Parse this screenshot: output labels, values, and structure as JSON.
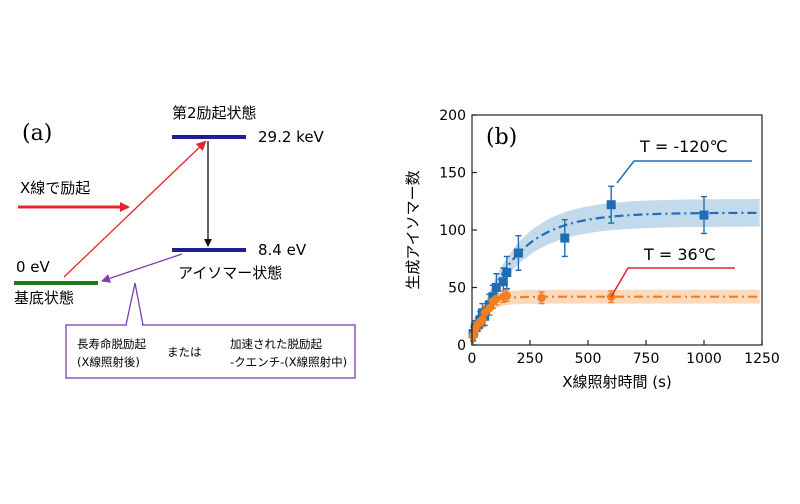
{
  "panel_a": {
    "label": "(a)",
    "excitation_label": "X線で励起",
    "levels": {
      "excited": {
        "name": "第2励起状態",
        "energy": "29.2 keV",
        "color": "#1f1f8f"
      },
      "isomer": {
        "name": "アイソマー状態",
        "energy": "8.4 eV",
        "color": "#1f1f8f"
      },
      "ground": {
        "name": "基底状態",
        "energy": "0 eV",
        "color": "#1b7a1b"
      }
    },
    "callout": {
      "left_line1": "長寿命脱励起",
      "left_line2": "(X線照射後)",
      "middle": "または",
      "right_line1": "加速された脱励起",
      "right_line2": "-クエンチ-(X線照射中)",
      "border_color": "#7b3fb5"
    },
    "colors": {
      "excite_arrow": "#e8242a",
      "decay_arrow": "#7b3fb5"
    }
  },
  "panel_b": {
    "label": "(b)",
    "series_label_cold": "T = -120℃",
    "series_label_warm": "T = 36℃"
  },
  "chart_data": {
    "type": "scatter",
    "title": "",
    "xlabel": "X線照射時間 (s)",
    "ylabel": "生成アイソマー数",
    "xlim": [
      0,
      1250
    ],
    "ylim": [
      0,
      200
    ],
    "xticks": [
      0,
      250,
      500,
      750,
      1000,
      1250
    ],
    "yticks": [
      0,
      50,
      100,
      150,
      200
    ],
    "grid": false,
    "series": [
      {
        "name": "T = -120℃",
        "color": "#1f6eb5",
        "band_color": "#a9cbe6",
        "marker": "square",
        "x": [
          5,
          15,
          25,
          35,
          45,
          55,
          75,
          90,
          105,
          135,
          150,
          200,
          400,
          600,
          1000
        ],
        "y": [
          10,
          15,
          18,
          22,
          28,
          25,
          35,
          42,
          50,
          55,
          63,
          80,
          93,
          122,
          113
        ],
        "yerr": [
          6,
          6,
          6,
          7,
          8,
          8,
          9,
          10,
          12,
          12,
          14,
          15,
          16,
          16,
          16
        ],
        "fit": {
          "saturation": 115,
          "tau": 170,
          "band": 12
        }
      },
      {
        "name": "T = 36℃",
        "color": "#ef7f22",
        "band_color": "#f8c9a0",
        "marker": "circle",
        "x": [
          5,
          15,
          25,
          35,
          45,
          55,
          75,
          90,
          105,
          135,
          150,
          300,
          600
        ],
        "y": [
          8,
          14,
          18,
          20,
          22,
          28,
          32,
          38,
          40,
          42,
          43,
          41,
          42
        ],
        "yerr": [
          5,
          5,
          5,
          6,
          6,
          6,
          6,
          6,
          5,
          5,
          5,
          5,
          5
        ],
        "fit": {
          "saturation": 42,
          "tau": 45,
          "band": 6
        }
      }
    ]
  }
}
